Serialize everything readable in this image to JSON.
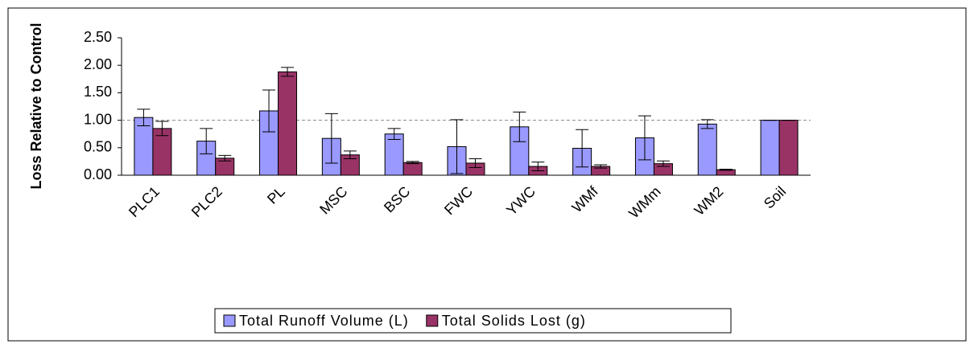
{
  "chart_data": {
    "type": "bar",
    "y_label": "Loss Relative to Control",
    "categories": [
      "PLC1",
      "PLC2",
      "PL",
      "MSC",
      "BSC",
      "FWC",
      "YWC",
      "WMf",
      "WMm",
      "WM2",
      "Soil"
    ],
    "series": [
      {
        "name": "Total Runoff Volume (L)",
        "color": "#9999ff",
        "values": [
          1.05,
          0.62,
          1.17,
          0.67,
          0.75,
          0.52,
          0.88,
          0.49,
          0.68,
          0.93,
          1.0
        ],
        "errors": [
          0.15,
          0.23,
          0.38,
          0.45,
          0.1,
          0.49,
          0.27,
          0.34,
          0.4,
          0.08,
          0
        ]
      },
      {
        "name": "Total Solids Lost (g)",
        "color": "#993366",
        "values": [
          0.85,
          0.31,
          1.88,
          0.37,
          0.23,
          0.22,
          0.16,
          0.16,
          0.21,
          0.1,
          1.0
        ],
        "errors": [
          0.13,
          0.05,
          0.08,
          0.07,
          0.02,
          0.08,
          0.08,
          0.03,
          0.05,
          0.01,
          0
        ]
      }
    ],
    "ylim": [
      0,
      2.5
    ],
    "yticks": [
      {
        "value": 0,
        "label": "0.00"
      },
      {
        "value": 0.5,
        "label": "0.50"
      },
      {
        "value": 1,
        "label": "1.00"
      },
      {
        "value": 1.5,
        "label": "1.50"
      },
      {
        "value": 2,
        "label": "2.00"
      },
      {
        "value": 2.5,
        "label": "2.50"
      }
    ],
    "reference_line": 1,
    "legend": "bottom"
  }
}
